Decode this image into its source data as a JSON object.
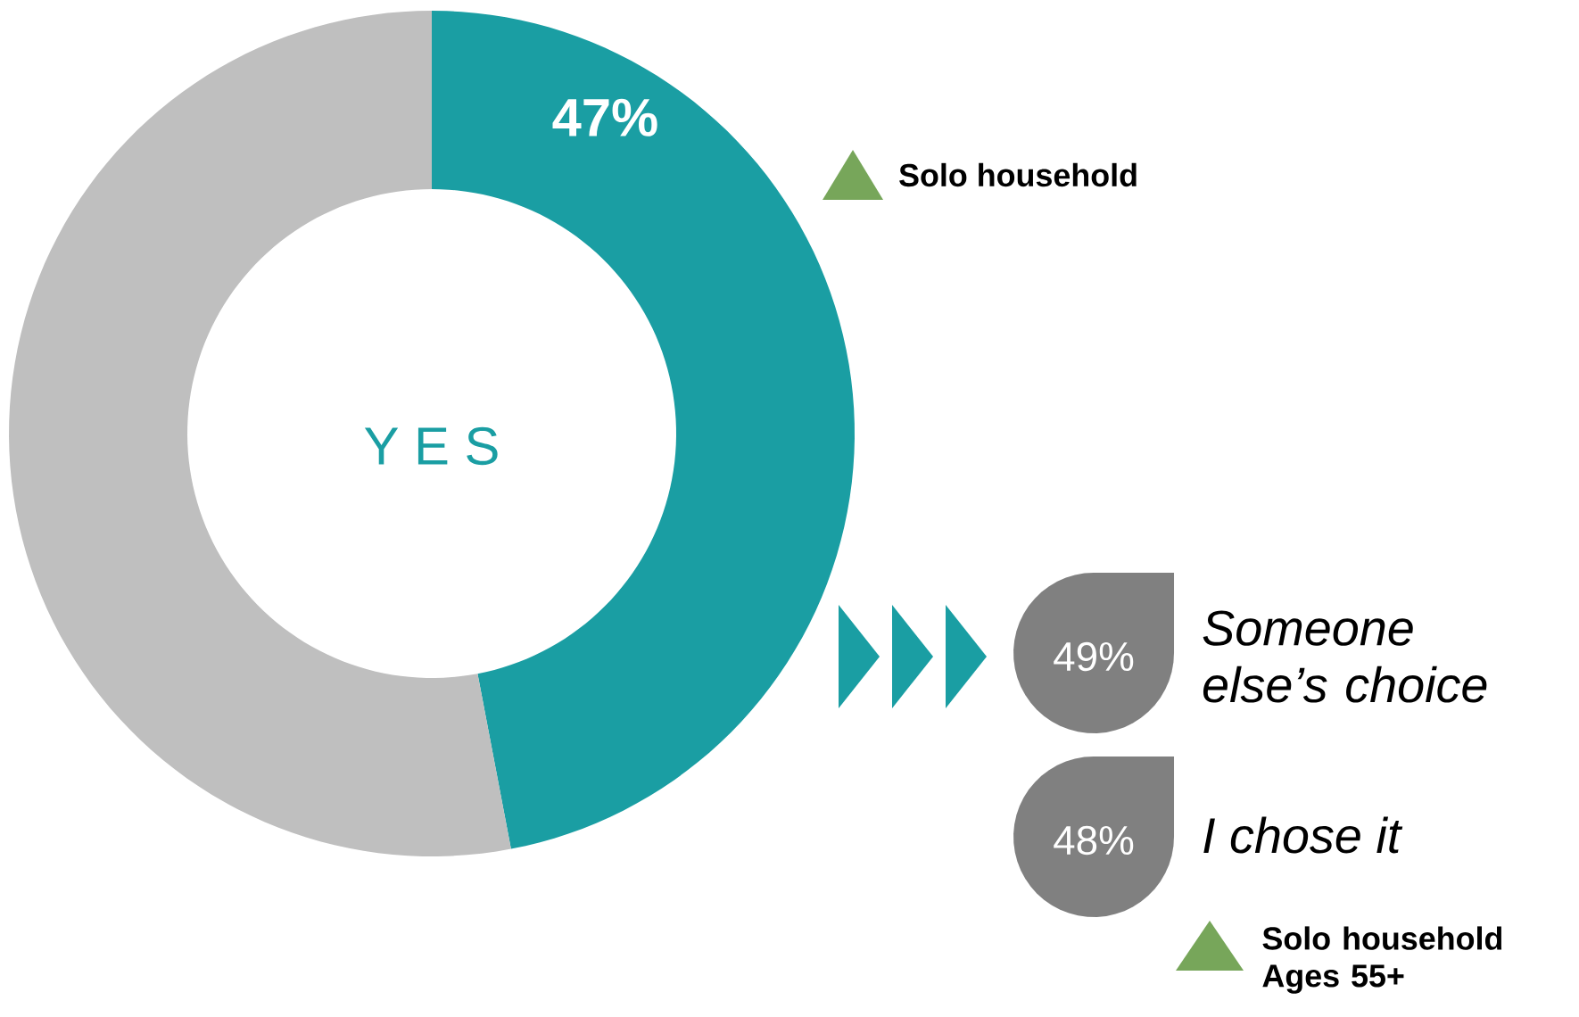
{
  "chart_data": {
    "type": "donut",
    "categories": [
      null,
      null
    ],
    "values": [
      47,
      53
    ],
    "colors": [
      "#1a9ea3",
      "#bfbfbf"
    ],
    "value_labels": [
      "47%",
      null
    ],
    "annotations": [
      "Y E S",
      "Solo household",
      "49%",
      "Someone else’s choice",
      "48%",
      "I chose it",
      "Solo household Ages 55+"
    ]
  }
}
